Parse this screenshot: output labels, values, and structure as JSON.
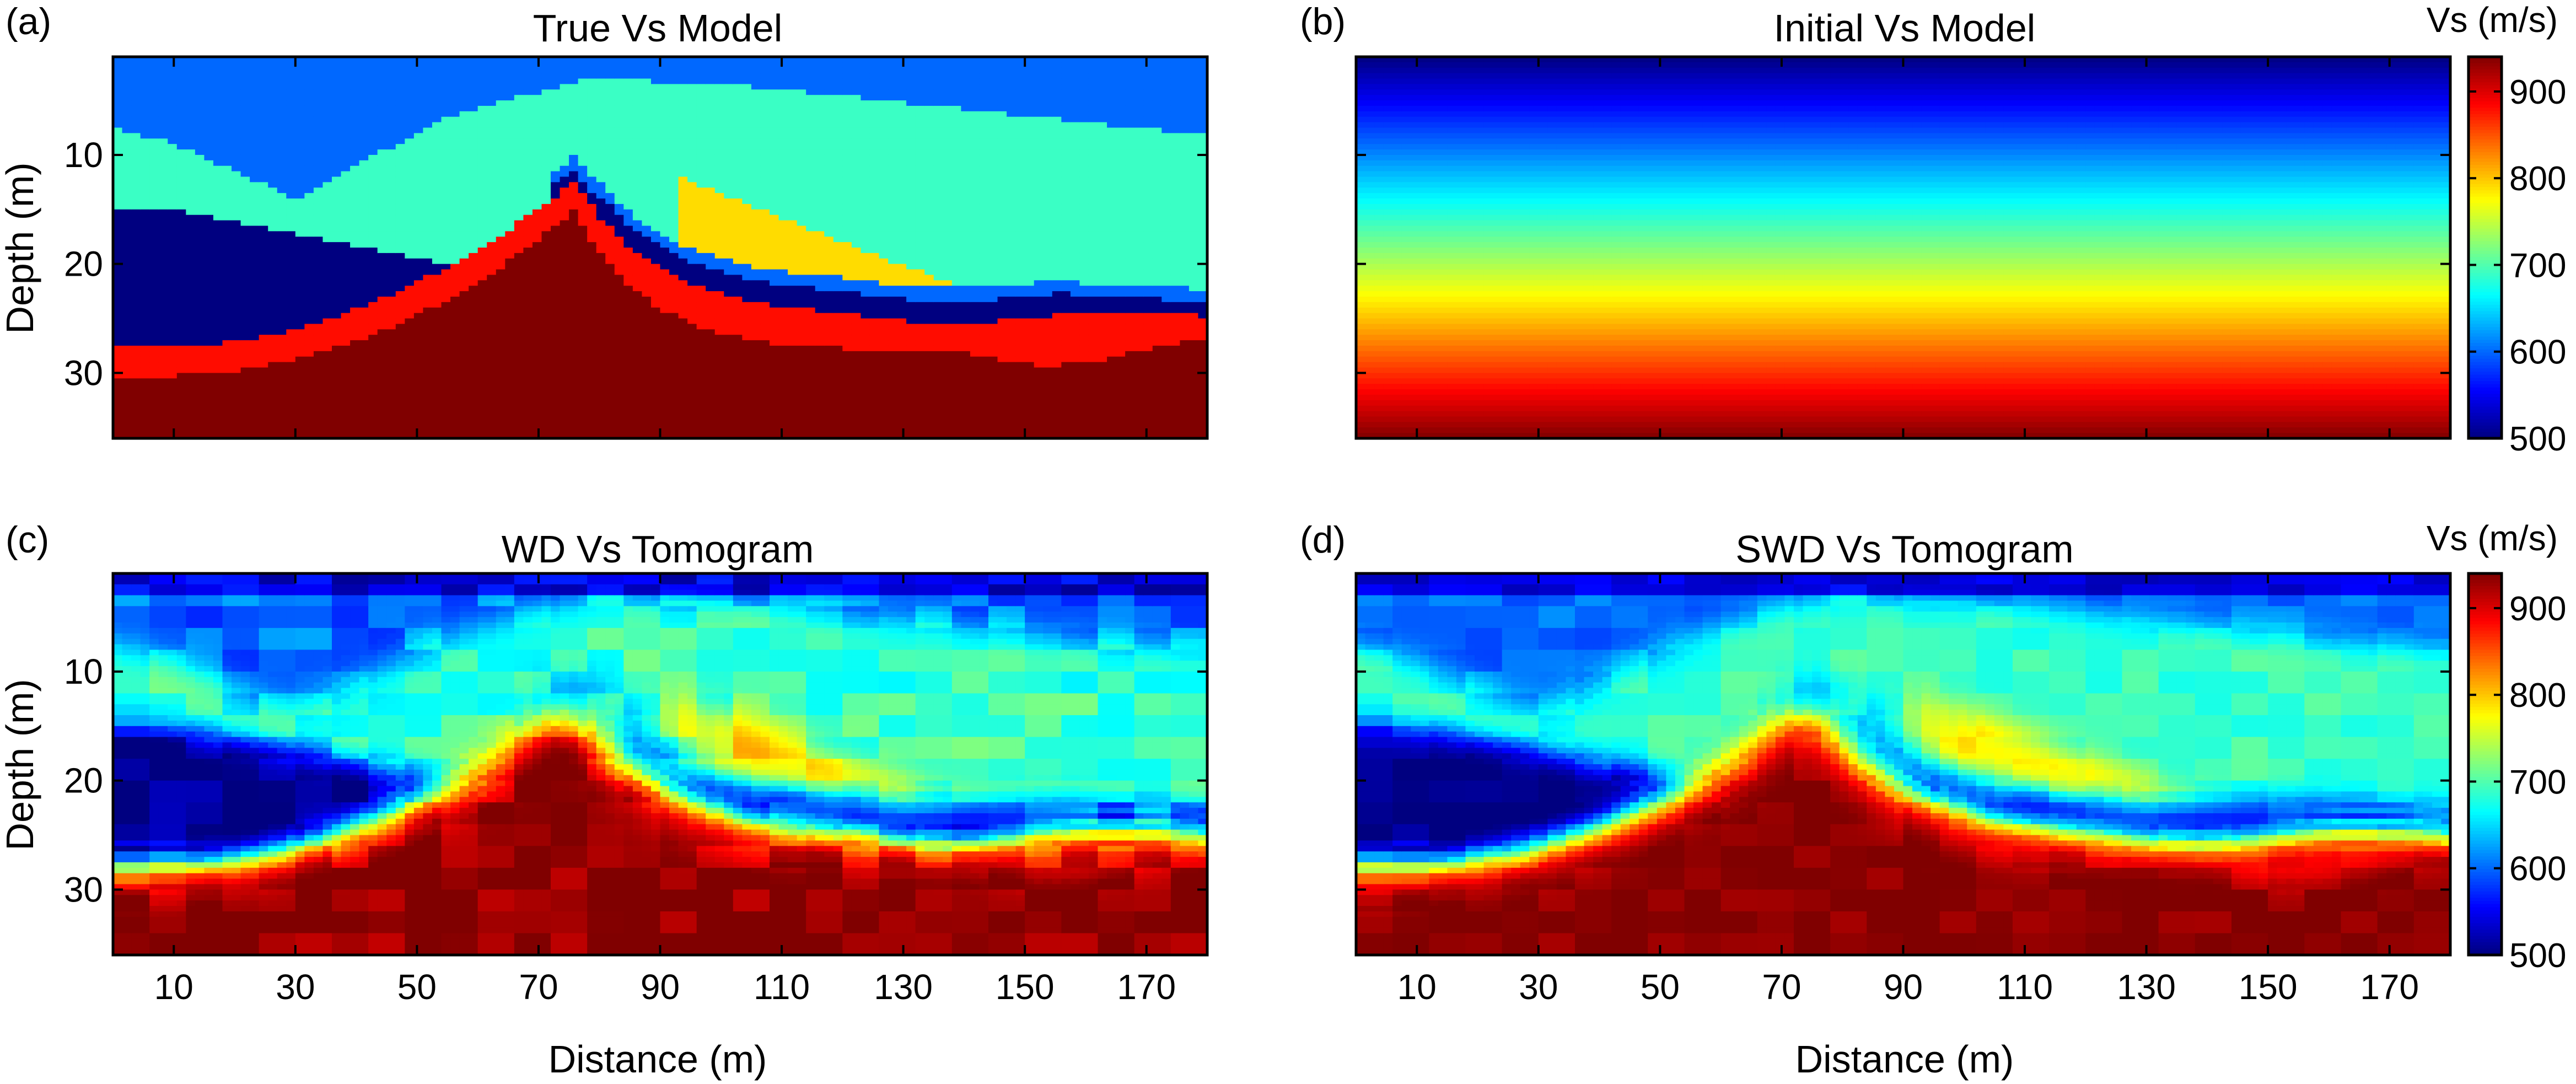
{
  "chart_data": [
    {
      "type": "heatmap",
      "panel_label": "(a)",
      "title": "True Vs Model",
      "xlabel": "",
      "ylabel": "Depth (m)",
      "x_ticks": [
        10,
        30,
        50,
        70,
        90,
        110,
        130,
        150,
        170
      ],
      "y_ticks": [
        10,
        20,
        30
      ],
      "xlim": [
        0,
        180
      ],
      "ylim": [
        1,
        36
      ],
      "show_x_tick_labels": false,
      "show_y_tick_labels": true,
      "model": "true",
      "layers": [
        {
          "name": "top",
          "vs": 600
        },
        {
          "name": "cyan layer",
          "vs": 690
        },
        {
          "name": "low-velocity zone",
          "vs": 500
        },
        {
          "name": "yellow lens",
          "vs": 780
        },
        {
          "name": "red layer",
          "vs": 880
        },
        {
          "name": "basement",
          "vs": 940
        }
      ]
    },
    {
      "type": "heatmap",
      "panel_label": "(b)",
      "title": "Initial Vs Model",
      "xlabel": "",
      "ylabel": "",
      "x_ticks": [
        10,
        30,
        50,
        70,
        90,
        110,
        130,
        150,
        170
      ],
      "y_ticks": [
        10,
        20,
        30
      ],
      "xlim": [
        0,
        180
      ],
      "ylim": [
        1,
        36
      ],
      "show_x_tick_labels": false,
      "show_y_tick_labels": false,
      "model": "initial",
      "vs_range": [
        500,
        940
      ]
    },
    {
      "type": "heatmap",
      "panel_label": "(c)",
      "title": "WD Vs Tomogram",
      "xlabel": "Distance (m)",
      "ylabel": "Depth (m)",
      "x_ticks": [
        10,
        30,
        50,
        70,
        90,
        110,
        130,
        150,
        170
      ],
      "y_ticks": [
        10,
        20,
        30
      ],
      "xlim": [
        0,
        180
      ],
      "ylim": [
        1,
        36
      ],
      "show_x_tick_labels": true,
      "show_y_tick_labels": true,
      "model": "wd"
    },
    {
      "type": "heatmap",
      "panel_label": "(d)",
      "title": "SWD Vs Tomogram",
      "xlabel": "Distance (m)",
      "ylabel": "",
      "x_ticks": [
        10,
        30,
        50,
        70,
        90,
        110,
        130,
        150,
        170
      ],
      "y_ticks": [
        10,
        20,
        30
      ],
      "xlim": [
        0,
        180
      ],
      "ylim": [
        1,
        36
      ],
      "show_x_tick_labels": true,
      "show_y_tick_labels": false,
      "model": "swd"
    }
  ],
  "colorbars": [
    {
      "title": "Vs (m/s)",
      "min": 500,
      "max": 940,
      "ticks": [
        500,
        600,
        700,
        800,
        900
      ],
      "colormap": "jet"
    },
    {
      "title": "Vs (m/s)",
      "min": 500,
      "max": 940,
      "ticks": [
        500,
        600,
        700,
        800,
        900
      ],
      "colormap": "jet"
    }
  ],
  "colors": {
    "axis": "#000000",
    "background": "#ffffff"
  }
}
